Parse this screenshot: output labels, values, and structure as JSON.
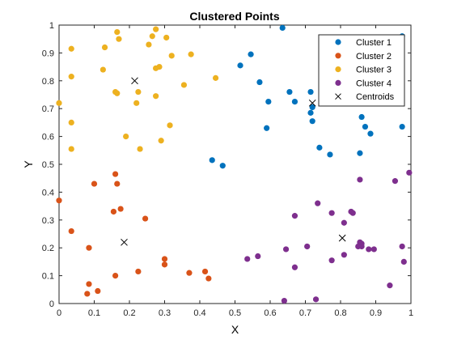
{
  "chart_data": {
    "type": "scatter",
    "title": "Clustered Points",
    "xlabel": "X",
    "ylabel": "Y",
    "xlim": [
      0,
      1
    ],
    "ylim": [
      0,
      1
    ],
    "xticks": [
      0,
      0.1,
      0.2,
      0.3,
      0.4,
      0.5,
      0.6,
      0.7,
      0.8,
      0.9,
      1
    ],
    "xtick_labels": [
      "0",
      "0.1",
      "0.2",
      "0.3",
      "0.4",
      "0.5",
      "0.6",
      "0.7",
      "0.8",
      "0.9",
      "1"
    ],
    "yticks": [
      0,
      0.1,
      0.2,
      0.3,
      0.4,
      0.5,
      0.6,
      0.7,
      0.8,
      0.9,
      1
    ],
    "ytick_labels": [
      "0",
      "0.1",
      "0.2",
      "0.3",
      "0.4",
      "0.5",
      "0.6",
      "0.7",
      "0.8",
      "0.9",
      "1"
    ],
    "grid": false,
    "legend_position": "top-right",
    "series": [
      {
        "name": "Cluster 1",
        "color": "#0072bd",
        "marker": "dot",
        "points": [
          [
            0.635,
            0.99
          ],
          [
            0.975,
            0.96
          ],
          [
            0.515,
            0.855
          ],
          [
            0.545,
            0.895
          ],
          [
            0.57,
            0.795
          ],
          [
            0.655,
            0.76
          ],
          [
            0.595,
            0.725
          ],
          [
            0.67,
            0.725
          ],
          [
            0.715,
            0.76
          ],
          [
            0.715,
            0.685
          ],
          [
            0.72,
            0.705
          ],
          [
            0.72,
            0.655
          ],
          [
            0.59,
            0.63
          ],
          [
            0.86,
            0.67
          ],
          [
            0.87,
            0.635
          ],
          [
            0.885,
            0.61
          ],
          [
            0.975,
            0.635
          ],
          [
            0.74,
            0.56
          ],
          [
            0.77,
            0.535
          ],
          [
            0.855,
            0.54
          ],
          [
            0.435,
            0.515
          ],
          [
            0.465,
            0.495
          ]
        ]
      },
      {
        "name": "Cluster 2",
        "color": "#d95319",
        "marker": "dot",
        "points": [
          [
            0.0,
            0.37
          ],
          [
            0.1,
            0.43
          ],
          [
            0.16,
            0.465
          ],
          [
            0.165,
            0.43
          ],
          [
            0.175,
            0.34
          ],
          [
            0.155,
            0.33
          ],
          [
            0.245,
            0.305
          ],
          [
            0.035,
            0.26
          ],
          [
            0.085,
            0.2
          ],
          [
            0.3,
            0.16
          ],
          [
            0.3,
            0.14
          ],
          [
            0.225,
            0.115
          ],
          [
            0.16,
            0.1
          ],
          [
            0.37,
            0.11
          ],
          [
            0.415,
            0.115
          ],
          [
            0.425,
            0.09
          ],
          [
            0.085,
            0.07
          ],
          [
            0.11,
            0.045
          ],
          [
            0.08,
            0.035
          ]
        ]
      },
      {
        "name": "Cluster 3",
        "color": "#edb120",
        "marker": "dot",
        "points": [
          [
            0.165,
            0.975
          ],
          [
            0.275,
            0.985
          ],
          [
            0.17,
            0.95
          ],
          [
            0.265,
            0.96
          ],
          [
            0.305,
            0.955
          ],
          [
            0.255,
            0.93
          ],
          [
            0.035,
            0.915
          ],
          [
            0.13,
            0.92
          ],
          [
            0.32,
            0.89
          ],
          [
            0.375,
            0.895
          ],
          [
            0.275,
            0.845
          ],
          [
            0.285,
            0.85
          ],
          [
            0.125,
            0.84
          ],
          [
            0.035,
            0.815
          ],
          [
            0.445,
            0.81
          ],
          [
            0.355,
            0.785
          ],
          [
            0.16,
            0.76
          ],
          [
            0.165,
            0.755
          ],
          [
            0.225,
            0.76
          ],
          [
            0.275,
            0.745
          ],
          [
            0.0,
            0.72
          ],
          [
            0.22,
            0.72
          ],
          [
            0.035,
            0.65
          ],
          [
            0.315,
            0.64
          ],
          [
            0.19,
            0.6
          ],
          [
            0.29,
            0.585
          ],
          [
            0.035,
            0.555
          ],
          [
            0.23,
            0.555
          ]
        ]
      },
      {
        "name": "Cluster 4",
        "color": "#7e2f8e",
        "marker": "dot",
        "points": [
          [
            0.995,
            0.47
          ],
          [
            0.855,
            0.445
          ],
          [
            0.955,
            0.44
          ],
          [
            0.735,
            0.36
          ],
          [
            0.67,
            0.315
          ],
          [
            0.775,
            0.325
          ],
          [
            0.83,
            0.33
          ],
          [
            0.835,
            0.325
          ],
          [
            0.81,
            0.29
          ],
          [
            0.86,
            0.215
          ],
          [
            0.855,
            0.22
          ],
          [
            0.85,
            0.205
          ],
          [
            0.86,
            0.205
          ],
          [
            0.88,
            0.195
          ],
          [
            0.895,
            0.195
          ],
          [
            0.645,
            0.195
          ],
          [
            0.705,
            0.205
          ],
          [
            0.975,
            0.205
          ],
          [
            0.81,
            0.175
          ],
          [
            0.565,
            0.17
          ],
          [
            0.535,
            0.16
          ],
          [
            0.775,
            0.155
          ],
          [
            0.98,
            0.15
          ],
          [
            0.67,
            0.13
          ],
          [
            0.94,
            0.065
          ],
          [
            0.64,
            0.01
          ],
          [
            0.73,
            0.015
          ]
        ]
      },
      {
        "name": "Centroids",
        "color": "#000000",
        "marker": "x",
        "points": [
          [
            0.215,
            0.8
          ],
          [
            0.72,
            0.72
          ],
          [
            0.185,
            0.22
          ],
          [
            0.805,
            0.235
          ]
        ]
      }
    ]
  }
}
